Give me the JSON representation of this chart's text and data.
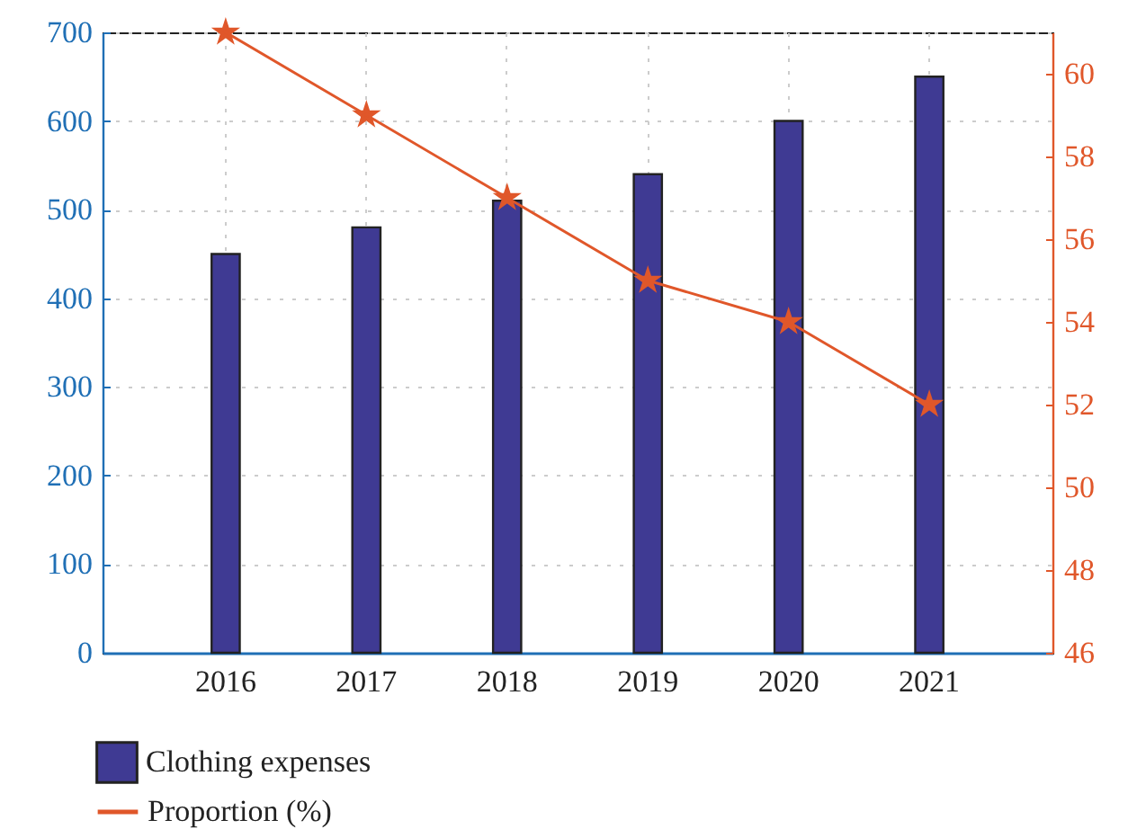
{
  "chart_data": {
    "type": "bar",
    "categories": [
      "2016",
      "2017",
      "2018",
      "2019",
      "2020",
      "2021"
    ],
    "series": [
      {
        "name": "Clothing expenses",
        "color": "#3f3a93",
        "values": [
          450,
          480,
          510,
          540,
          600,
          650
        ]
      },
      {
        "name": "Proportion (%)",
        "type": "line",
        "axis": "y2",
        "marker": "star",
        "color": "#e0572a",
        "values": [
          61,
          59,
          57,
          55,
          54,
          52
        ]
      }
    ],
    "ylim": [
      0,
      700
    ],
    "yticks": [
      0,
      100,
      200,
      300,
      400,
      500,
      600,
      700
    ],
    "y2lim": [
      46,
      61
    ],
    "y2ticks": [
      46,
      48,
      50,
      52,
      54,
      56,
      58,
      60
    ],
    "grid": true,
    "legend": "bottom left"
  }
}
